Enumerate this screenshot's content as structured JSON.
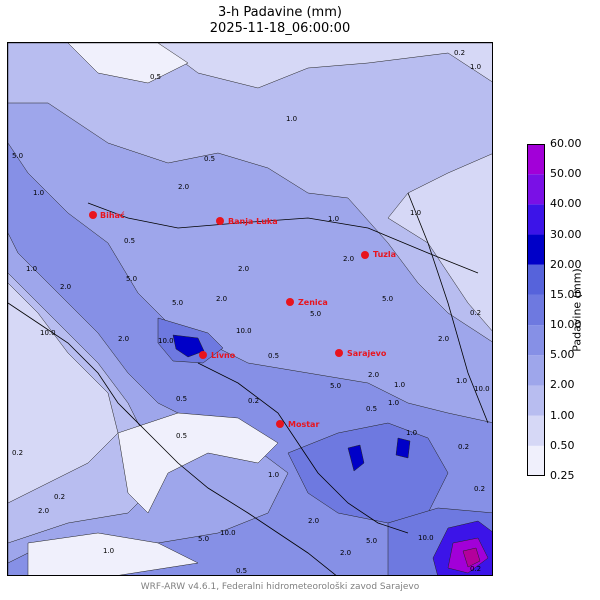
{
  "title": {
    "line1": "3-h Padavine (mm)",
    "line2": "2025-11-18_06:00:00"
  },
  "colorbar": {
    "label": "Padavine (mm)",
    "levels": [
      "0.25",
      "0.50",
      "1.00",
      "2.00",
      "5.00",
      "10.00",
      "15.00",
      "20.00",
      "30.00",
      "40.00",
      "50.00",
      "60.00"
    ],
    "colors": [
      "#f0f0fc",
      "#d6d8f6",
      "#b8bdf0",
      "#9ea6eb",
      "#8690e6",
      "#6e79e0",
      "#5663db",
      "#0000c8",
      "#3c14e8",
      "#7a10e6",
      "#a200d8",
      "#b4009c"
    ]
  },
  "cities": [
    {
      "name": "Bihać"
    },
    {
      "name": "Banja Luka"
    },
    {
      "name": "Tuzla"
    },
    {
      "name": "Zenica"
    },
    {
      "name": "Livno"
    },
    {
      "name": "Sarajevo"
    },
    {
      "name": "Mostar"
    }
  ],
  "contour_labels": [
    "0.2",
    "1.0",
    "1.0",
    "0.5",
    "5.0",
    "1.0",
    "2.0",
    "1.0",
    "2.0",
    "2.0",
    "5.0",
    "2.0",
    "0.5",
    "5.0",
    "10.0",
    "2.0",
    "5.0",
    "2.0",
    "10.0",
    "0.5",
    "1.0",
    "0.5",
    "5.0",
    "2.0",
    "0.2",
    "0.5",
    "10.0",
    "2.0",
    "1.0",
    "5.0",
    "10.0",
    "2.0",
    "5.0",
    "10.0",
    "0.5",
    "1.0",
    "0.2",
    "0.5",
    "1.0",
    "0.2",
    "1.0",
    "1.0",
    "0.2",
    "1.0",
    "10.0",
    "0.5",
    "5.0",
    "2.0",
    "0.2",
    "0.2",
    "2.0",
    "1.0",
    "0.2"
  ],
  "footer": "WRF-ARW v4.6.1, Federalni hidrometeorološki zavod Sarajevo"
}
